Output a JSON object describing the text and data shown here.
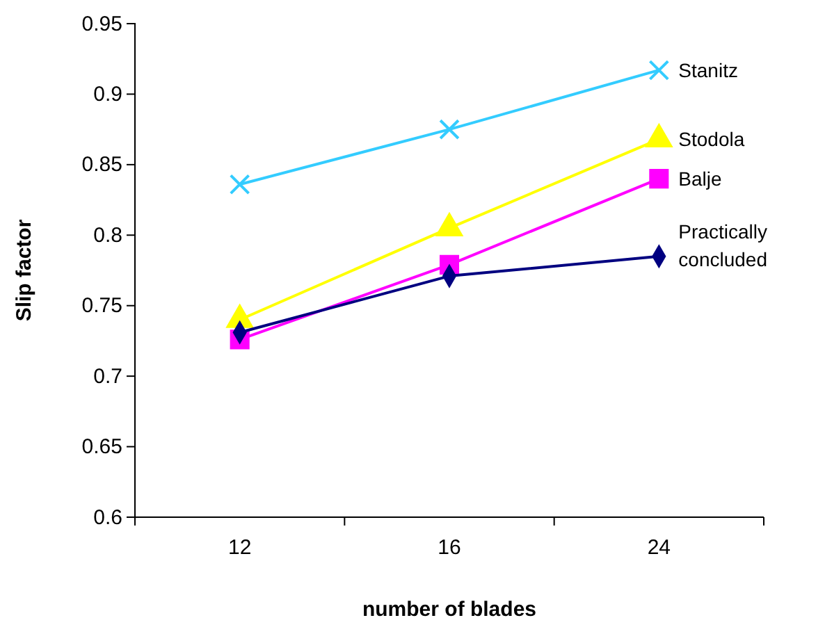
{
  "chart_data": {
    "type": "line",
    "xlabel": "number of blades",
    "ylabel": "Slip factor",
    "categories": [
      "12",
      "16",
      "24"
    ],
    "ylim": [
      0.6,
      0.95
    ],
    "yticks": [
      0.6,
      0.65,
      0.7,
      0.75,
      0.8,
      0.85,
      0.9,
      0.95
    ],
    "series": [
      {
        "name": "Stanitz",
        "color": "#33ccff",
        "marker": "cross",
        "values": [
          0.836,
          0.875,
          0.917
        ]
      },
      {
        "name": "Stodola",
        "color": "#ffff00",
        "marker": "triangle",
        "values": [
          0.74,
          0.805,
          0.868
        ]
      },
      {
        "name": "Balje",
        "color": "#ff00ff",
        "marker": "square",
        "values": [
          0.726,
          0.779,
          0.84
        ]
      },
      {
        "name": "Practically concluded",
        "color": "#000080",
        "marker": "diamond",
        "values": [
          0.731,
          0.771,
          0.785
        ]
      }
    ]
  }
}
